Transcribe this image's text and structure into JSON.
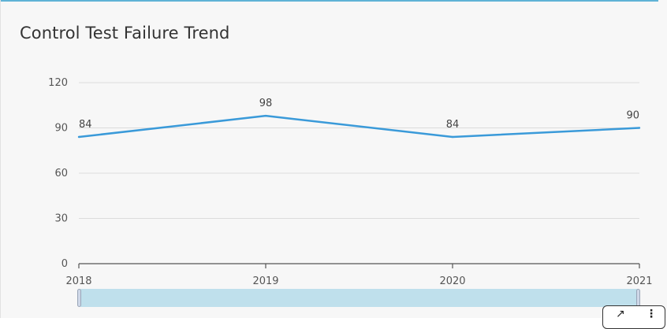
{
  "card": {
    "title": "Control Test Failure Trend"
  },
  "colors": {
    "line": "#3a9ad9",
    "grid": "#dcdcdc",
    "axis": "#555555",
    "accent_border": "#5fb3d6",
    "slider": "#bfe0ec"
  },
  "toolbar": {
    "expand_icon": "expand-icon",
    "more_icon": "more-vertical-icon"
  },
  "chart_data": {
    "type": "line",
    "title": "Control Test Failure Trend",
    "categories": [
      "2018",
      "2019",
      "2020",
      "2021"
    ],
    "series": [
      {
        "values": [
          84,
          98,
          84,
          90
        ]
      }
    ],
    "data_labels": [
      "84",
      "98",
      "84",
      "90"
    ],
    "y_ticks": [
      0,
      30,
      60,
      90,
      120
    ],
    "ylim": [
      0,
      120
    ],
    "xlabel": "",
    "ylabel": "",
    "grid": true,
    "legend": "none"
  }
}
